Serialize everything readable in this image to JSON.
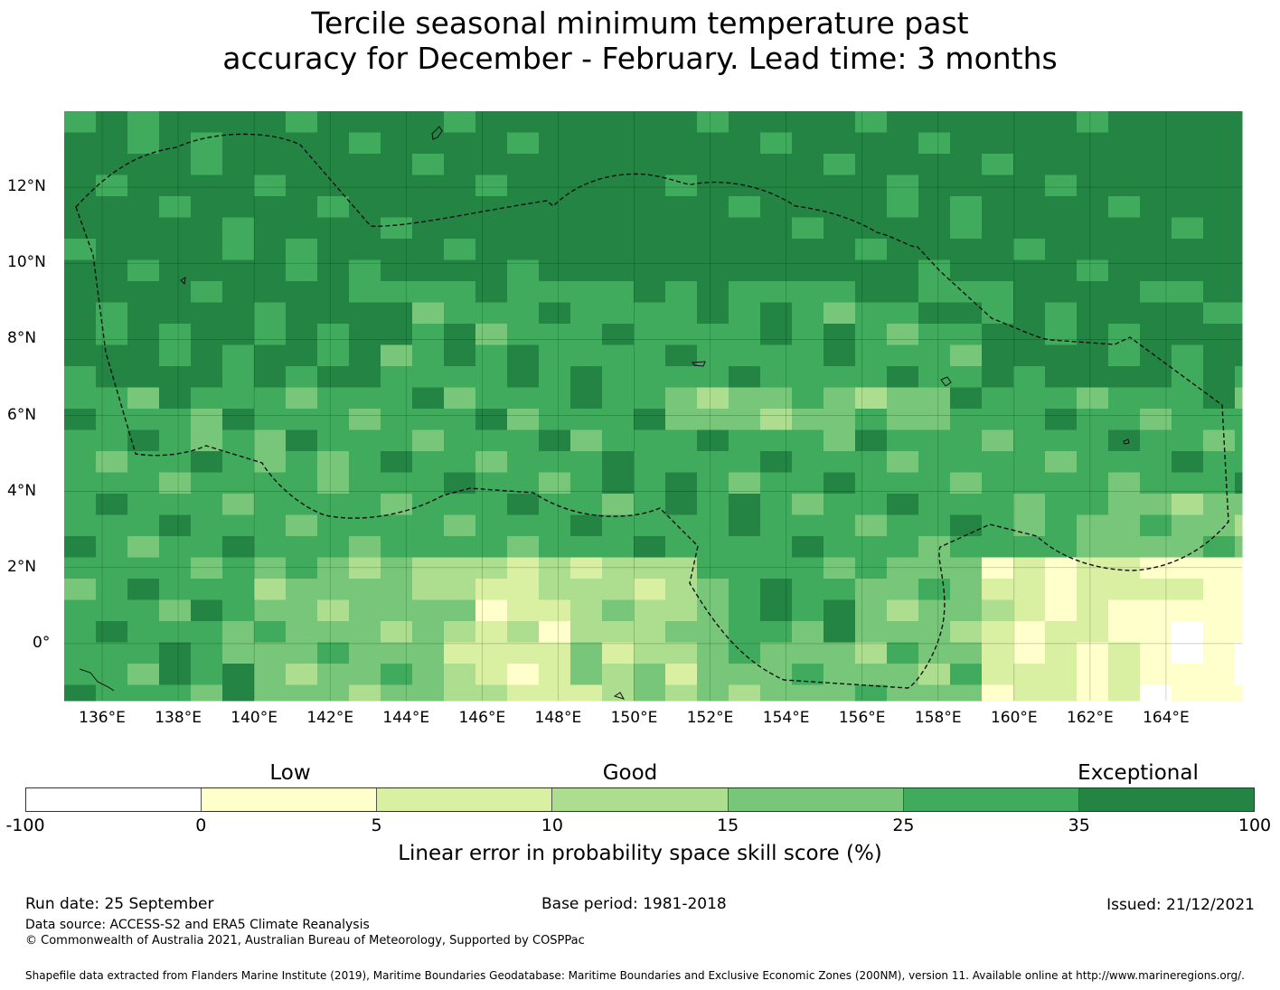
{
  "title": {
    "line1": "Tercile seasonal minimum temperature past",
    "line2": "accuracy for December - February. Lead time: 3 months"
  },
  "map": {
    "lon_labels": [
      "136°E",
      "138°E",
      "140°E",
      "142°E",
      "144°E",
      "146°E",
      "148°E",
      "150°E",
      "152°E",
      "154°E",
      "156°E",
      "158°E",
      "160°E",
      "162°E",
      "164°E"
    ],
    "lat_labels": [
      "12°N",
      "10°N",
      "8°N",
      "6°N",
      "4°N",
      "2°N",
      "0°"
    ],
    "lon_range": [
      135,
      166
    ],
    "lat_range": [
      -1.5,
      14
    ]
  },
  "colorbar": {
    "categories": [
      "Low",
      "Good",
      "Exceptional"
    ],
    "ticks": [
      "-100",
      "0",
      "5",
      "10",
      "15",
      "25",
      "35",
      "100"
    ],
    "colors": [
      "#ffffff",
      "#ffffcc",
      "#d9f0a3",
      "#addd8e",
      "#78c679",
      "#41ab5d",
      "#238443"
    ],
    "label": "Linear error in probability space skill score (%)"
  },
  "footer": {
    "run_date": "Run date: 25 September",
    "base_period": "Base period: 1981-2018",
    "issued": "Issued: 21/12/2021",
    "data_source": "Data source: ACCESS-S2 and ERA5 Climate Reanalysis",
    "copyright": "© Commonwealth of Australia 2021, Australian Bureau of Meteorology, Supported by COSPPac",
    "shapefile": "Shapefile data extracted from Flanders Marine Institute (2019), Maritime Boundaries Geodatabase: Maritime Boundaries and Exclusive Economic Zones (200NM), version 11. Available online at http://www.marineregions.org/."
  }
}
